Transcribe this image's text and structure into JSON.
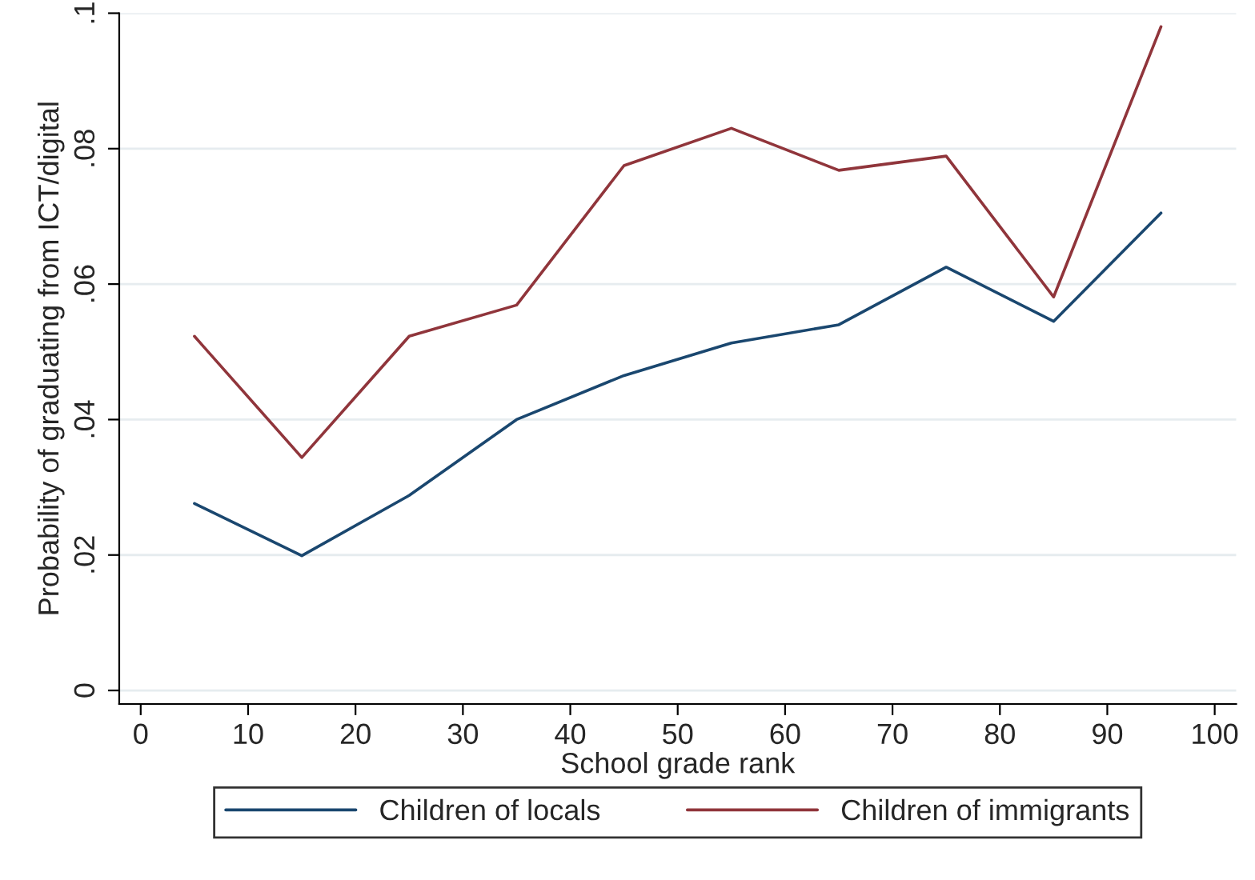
{
  "chart_data": {
    "type": "line",
    "xlabel": "School grade rank",
    "ylabel": "Probability of graduating from ICT/digital",
    "x": [
      5,
      15,
      25,
      35,
      45,
      55,
      65,
      75,
      85,
      95
    ],
    "series": [
      {
        "name": "Children of locals",
        "color": "#1a476f",
        "values": [
          0.0276,
          0.0199,
          0.0288,
          0.04,
          0.0465,
          0.0513,
          0.054,
          0.0625,
          0.0545,
          0.0705
        ]
      },
      {
        "name": "Children of immigrants",
        "color": "#90353b",
        "values": [
          0.0523,
          0.0344,
          0.0523,
          0.0569,
          0.0775,
          0.083,
          0.0768,
          0.0789,
          0.0581,
          0.098
        ]
      }
    ],
    "xlim": [
      -2,
      102
    ],
    "xticks": [
      0,
      10,
      20,
      30,
      40,
      50,
      60,
      70,
      80,
      90,
      100
    ],
    "ylim": [
      -0.002,
      0.1
    ],
    "yticks": [
      {
        "value": 0,
        "label": "0"
      },
      {
        "value": 0.02,
        "label": ".02"
      },
      {
        "value": 0.04,
        "label": ".04"
      },
      {
        "value": 0.06,
        "label": ".06"
      },
      {
        "value": 0.08,
        "label": ".08"
      },
      {
        "value": 0.1,
        "label": ".1"
      }
    ],
    "grid": "y",
    "legend": "bottom",
    "marker": "none",
    "line_style": "solid"
  }
}
